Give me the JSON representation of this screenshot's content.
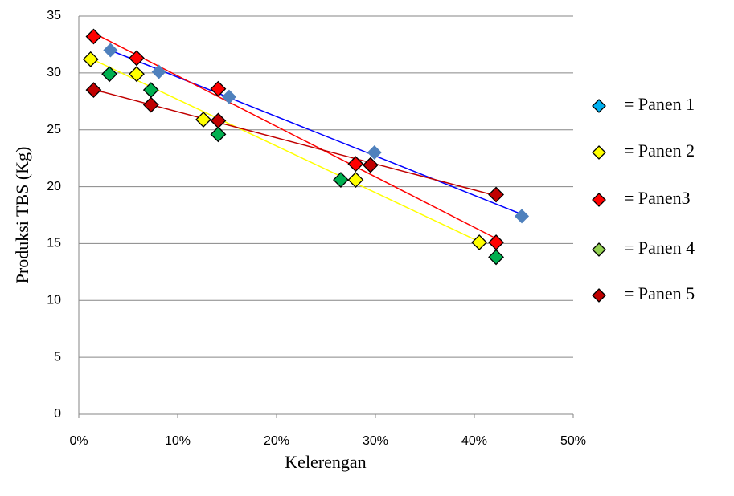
{
  "chart_data": {
    "type": "scatter",
    "x_label": "Kelerengan",
    "y_label": "Produksi TBS (Kg)",
    "xlim": [
      0,
      50
    ],
    "xticks": [
      {
        "value": 0,
        "label": "0%"
      },
      {
        "value": 10,
        "label": "10%"
      },
      {
        "value": 20,
        "label": "20%"
      },
      {
        "value": 30,
        "label": "30%"
      },
      {
        "value": 40,
        "label": "40%"
      },
      {
        "value": 50,
        "label": "50%"
      }
    ],
    "ylim": [
      0,
      35
    ],
    "yticks": [
      0,
      5,
      10,
      15,
      20,
      25,
      30,
      35
    ],
    "grid": true,
    "legend": "right",
    "series": [
      {
        "name": "= Panen 1",
        "color": "#4f81bd",
        "legend_color": "#00b0f0",
        "trendline": "#0000ff",
        "x": [
          3.2,
          8.1,
          15.2,
          29.9,
          44.8
        ],
        "values": [
          32.0,
          30.1,
          27.9,
          23.0,
          17.4
        ]
      },
      {
        "name": "= Panen 2",
        "color": "#ffff00",
        "legend_color": "#ffff00",
        "trendline": "#ffff00",
        "x": [
          1.2,
          5.85,
          12.6,
          28.0,
          40.5
        ],
        "values": [
          31.2,
          29.9,
          25.9,
          20.6,
          15.1
        ]
      },
      {
        "name": "= Panen3",
        "color": "#ff0000",
        "legend_color": "#ff0000",
        "trendline": "#ff0000",
        "x": [
          1.5,
          5.85,
          14.1,
          28.0,
          42.2
        ],
        "values": [
          33.2,
          31.3,
          28.6,
          22.0,
          15.1
        ]
      },
      {
        "name": "= Panen 4",
        "color": "#00b050",
        "legend_color": "#92d050",
        "x": [
          3.1,
          7.3,
          14.1,
          26.5,
          42.2
        ],
        "values": [
          29.9,
          28.5,
          24.6,
          20.6,
          13.8
        ]
      },
      {
        "name": "= Panen 5",
        "color": "#c00000",
        "legend_color": "#c00000",
        "trendline": "#c00000",
        "x": [
          1.5,
          7.3,
          14.1,
          29.5,
          42.2
        ],
        "values": [
          28.5,
          27.2,
          25.8,
          21.9,
          19.3
        ]
      }
    ]
  }
}
